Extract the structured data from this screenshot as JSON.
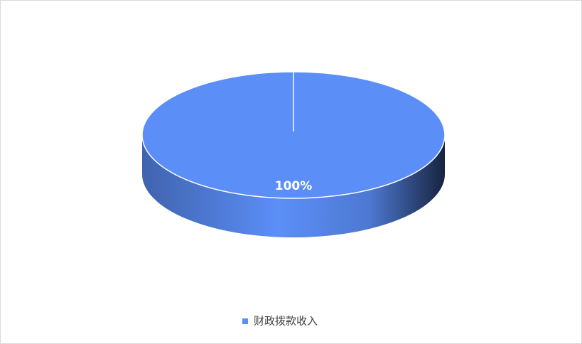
{
  "chart_data": {
    "type": "pie",
    "categories": [
      "财政拨款收入"
    ],
    "values": [
      100
    ],
    "value_labels": [
      "100%"
    ],
    "colors": [
      "#5b8ef7"
    ]
  }
}
